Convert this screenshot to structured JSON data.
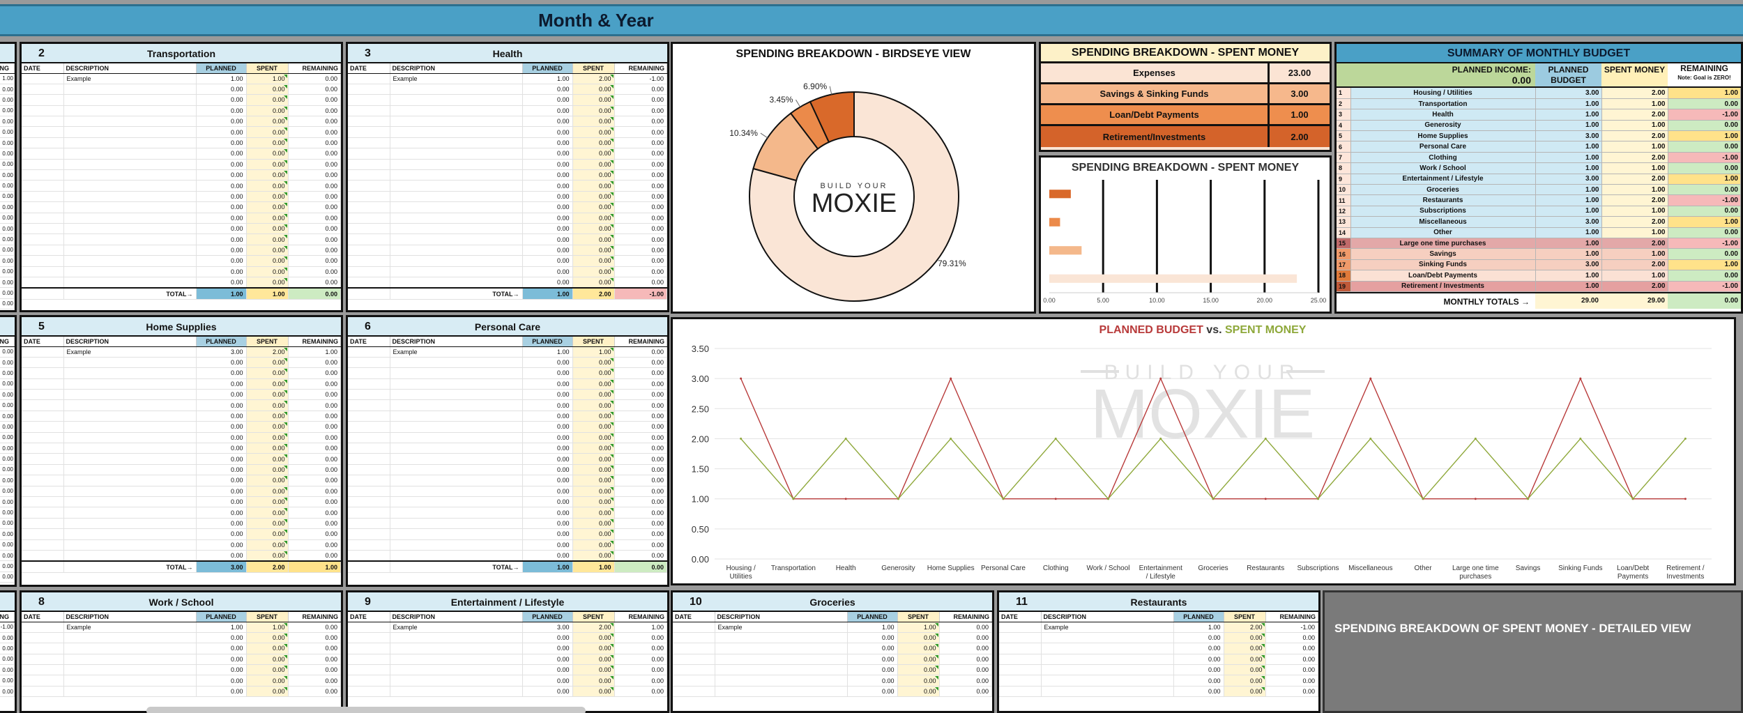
{
  "header": {
    "title": "Month & Year"
  },
  "columns": {
    "date": "DATE",
    "desc": "DESCRIPTION",
    "planned": "PLANNED",
    "spent": "SPENT",
    "remaining": "REMAINING"
  },
  "total_label": "TOTAL→",
  "left_strip": {
    "head": "ING",
    "rows": [
      [
        "1.00",
        "0.00",
        "0.00",
        "0.00",
        "0.00",
        "0.00",
        "0.00",
        "0.00",
        "0.00",
        "0.00",
        "0.00",
        "0.00",
        "0.00",
        "0.00",
        "0.00",
        "0.00",
        "0.00",
        "0.00",
        "0.00",
        "0.00",
        "0.00",
        "0.00",
        "0.00",
        "0.00",
        "0.00",
        "0.00",
        "0.00",
        "0.00",
        "0.00",
        "0.00",
        "1.00"
      ],
      [
        "0.00",
        "0.00",
        "0.00",
        "0.00",
        "0.00",
        "0.00",
        "0.00",
        "0.00",
        "0.00",
        "0.00",
        "0.00",
        "0.00",
        "0.00",
        "0.00",
        "0.00",
        "0.00",
        "0.00",
        "0.00",
        "0.00",
        "0.00",
        "0.00",
        "0.00",
        "0.00",
        "0.00",
        "0.00",
        "0.00",
        "0.00",
        "0.00",
        "0.00",
        "0.00",
        "0.00"
      ],
      [
        "-1.00",
        "0.00",
        "0.00",
        "0.00",
        "0.00",
        "0.00",
        "0.00"
      ]
    ]
  },
  "categories": [
    {
      "num": "2",
      "name": "Transportation",
      "rows": [
        [
          "Example",
          "1.00",
          "1.00",
          "0.00"
        ]
      ],
      "row_count": 20,
      "total": {
        "planned": "1.00",
        "spent": "1.00",
        "remaining": "0.00",
        "status": "zero"
      }
    },
    {
      "num": "3",
      "name": "Health",
      "rows": [
        [
          "Example",
          "1.00",
          "2.00",
          "-1.00"
        ]
      ],
      "row_count": 20,
      "total": {
        "planned": "1.00",
        "spent": "2.00",
        "remaining": "-1.00",
        "status": "neg"
      }
    },
    {
      "num": "5",
      "name": "Home Supplies",
      "rows": [
        [
          "Example",
          "3.00",
          "2.00",
          "1.00"
        ]
      ],
      "row_count": 20,
      "total": {
        "planned": "3.00",
        "spent": "2.00",
        "remaining": "1.00",
        "status": "pos"
      }
    },
    {
      "num": "6",
      "name": "Personal Care",
      "rows": [
        [
          "Example",
          "1.00",
          "1.00",
          "0.00"
        ]
      ],
      "row_count": 20,
      "total": {
        "planned": "1.00",
        "spent": "1.00",
        "remaining": "0.00",
        "status": "zero"
      }
    },
    {
      "num": "8",
      "name": "Work / School",
      "rows": [
        [
          "Example",
          "1.00",
          "1.00",
          "0.00"
        ]
      ],
      "row_count": 7
    },
    {
      "num": "9",
      "name": "Entertainment / Lifestyle",
      "rows": [
        [
          "Example",
          "3.00",
          "2.00",
          "1.00"
        ]
      ],
      "row_count": 7
    },
    {
      "num": "10",
      "name": "Groceries",
      "rows": [
        [
          "Example",
          "1.00",
          "1.00",
          "0.00"
        ]
      ],
      "row_count": 7
    },
    {
      "num": "11",
      "name": "Restaurants",
      "rows": [
        [
          "Example",
          "1.00",
          "2.00",
          "-1.00"
        ]
      ],
      "row_count": 7
    }
  ],
  "zero": "0.00",
  "birdseye": {
    "title": "SPENDING BREAKDOWN - BIRDSEYE VIEW",
    "logo_top": "BUILD YOUR",
    "logo_main": "MOXIE",
    "slices": [
      {
        "label": "Expenses",
        "value": 23.0,
        "pct": "79.31%",
        "color": "#fae5d6"
      },
      {
        "label": "Savings & Sinking Funds",
        "value": 3.0,
        "pct": "10.34%",
        "color": "#f4b88b"
      },
      {
        "label": "Loan/Debt Payments",
        "value": 1.0,
        "pct": "3.45%",
        "color": "#eb8a4a"
      },
      {
        "label": "Retirement/Investments",
        "value": 2.0,
        "pct": "6.90%",
        "color": "#d9692a"
      }
    ]
  },
  "spent_table": {
    "title": "SPENDING BREAKDOWN - SPENT MONEY",
    "rows": [
      {
        "label": "Expenses",
        "value": "23.00",
        "bg": "#fbe4d4"
      },
      {
        "label": "Savings & Sinking Funds",
        "value": "3.00",
        "bg": "#f6b88c"
      },
      {
        "label": "Loan/Debt Payments",
        "value": "1.00",
        "bg": "#ee8e4e"
      },
      {
        "label": "Retirement/Investments",
        "value": "2.00",
        "bg": "#d4632a"
      }
    ]
  },
  "chart_data": [
    {
      "type": "bar",
      "title": "SPENDING BREAKDOWN - SPENT MONEY",
      "orientation": "horizontal",
      "categories": [
        "Retirement/Investments",
        "Loan/Debt Payments",
        "Savings & Sinking Funds",
        "Expenses"
      ],
      "values": [
        2,
        1,
        3,
        23
      ],
      "colors": [
        "#d9692a",
        "#eb8a4a",
        "#f4b88b",
        "#fae5d6"
      ],
      "xlim": [
        0,
        25
      ],
      "xticks": [
        "0.00",
        "5.00",
        "10.00",
        "15.00",
        "20.00",
        "25.00"
      ]
    },
    {
      "type": "line",
      "title": "PLANNED BUDGET vs. SPENT MONEY",
      "title_parts": [
        "PLANNED BUDGET",
        " vs. ",
        "SPENT MONEY"
      ],
      "categories": [
        "Housing / Utilities",
        "Transportation",
        "Health",
        "Generosity",
        "Home Supplies",
        "Personal Care",
        "Clothing",
        "Work / School",
        "Entertainment / Lifestyle",
        "Groceries",
        "Restaurants",
        "Subscriptions",
        "Miscellaneous",
        "Other",
        "Large one time purchases",
        "Savings",
        "Sinking Funds",
        "Loan/Debt Payments",
        "Retirement / Investments"
      ],
      "series": [
        {
          "name": "PLANNED BUDGET",
          "color": "#b83a3a",
          "values": [
            3,
            1,
            1,
            1,
            3,
            1,
            1,
            1,
            3,
            1,
            1,
            1,
            3,
            1,
            1,
            1,
            3,
            1,
            1
          ]
        },
        {
          "name": "SPENT MONEY",
          "color": "#8ea83a",
          "values": [
            2,
            1,
            2,
            1,
            2,
            1,
            2,
            1,
            2,
            1,
            2,
            1,
            2,
            1,
            2,
            1,
            2,
            1,
            2
          ]
        }
      ],
      "ylim": [
        0,
        3.5
      ],
      "yticks": [
        "0.00",
        "0.50",
        "1.00",
        "1.50",
        "2.00",
        "2.50",
        "3.00",
        "3.50"
      ],
      "grid": true,
      "watermark_top": "BUILD YOUR",
      "watermark_main": "MOXIE"
    }
  ],
  "summary": {
    "title": "SUMMARY OF MONTHLY BUDGET",
    "income_label": "PLANNED INCOME:",
    "income_value": "0.00",
    "col_planned": "PLANNED BUDGET",
    "col_spent": "SPENT MONEY",
    "col_remaining": "REMAINING",
    "col_note": "Note: Goal is ZERO!",
    "rows": [
      {
        "i": "1",
        "name": "Housing / Utilities",
        "p": "3.00",
        "s": "2.00",
        "r": "1.00",
        "t": "exp",
        "st": "pos"
      },
      {
        "i": "2",
        "name": "Transportation",
        "p": "1.00",
        "s": "1.00",
        "r": "0.00",
        "t": "exp",
        "st": "zero"
      },
      {
        "i": "3",
        "name": "Health",
        "p": "1.00",
        "s": "2.00",
        "r": "-1.00",
        "t": "exp",
        "st": "neg"
      },
      {
        "i": "4",
        "name": "Generosity",
        "p": "1.00",
        "s": "1.00",
        "r": "0.00",
        "t": "exp",
        "st": "zero"
      },
      {
        "i": "5",
        "name": "Home Supplies",
        "p": "3.00",
        "s": "2.00",
        "r": "1.00",
        "t": "exp",
        "st": "pos"
      },
      {
        "i": "6",
        "name": "Personal Care",
        "p": "1.00",
        "s": "1.00",
        "r": "0.00",
        "t": "exp",
        "st": "zero"
      },
      {
        "i": "7",
        "name": "Clothing",
        "p": "1.00",
        "s": "2.00",
        "r": "-1.00",
        "t": "exp",
        "st": "neg"
      },
      {
        "i": "8",
        "name": "Work / School",
        "p": "1.00",
        "s": "1.00",
        "r": "0.00",
        "t": "exp",
        "st": "zero"
      },
      {
        "i": "9",
        "name": "Entertainment / Lifestyle",
        "p": "3.00",
        "s": "2.00",
        "r": "1.00",
        "t": "exp",
        "st": "pos"
      },
      {
        "i": "10",
        "name": "Groceries",
        "p": "1.00",
        "s": "1.00",
        "r": "0.00",
        "t": "exp",
        "st": "zero"
      },
      {
        "i": "11",
        "name": "Restaurants",
        "p": "1.00",
        "s": "2.00",
        "r": "-1.00",
        "t": "exp",
        "st": "neg"
      },
      {
        "i": "12",
        "name": "Subscriptions",
        "p": "1.00",
        "s": "1.00",
        "r": "0.00",
        "t": "exp",
        "st": "zero"
      },
      {
        "i": "13",
        "name": "Miscellaneous",
        "p": "3.00",
        "s": "2.00",
        "r": "1.00",
        "t": "exp",
        "st": "pos"
      },
      {
        "i": "14",
        "name": "Other",
        "p": "1.00",
        "s": "1.00",
        "r": "0.00",
        "t": "exp",
        "st": "zero"
      },
      {
        "i": "15",
        "name": "Large one time purchases",
        "p": "1.00",
        "s": "2.00",
        "r": "-1.00",
        "t": "big",
        "st": "neg"
      },
      {
        "i": "16",
        "name": "Savings",
        "p": "1.00",
        "s": "1.00",
        "r": "0.00",
        "t": "sav",
        "st": "zero"
      },
      {
        "i": "17",
        "name": "Sinking Funds",
        "p": "3.00",
        "s": "2.00",
        "r": "1.00",
        "t": "sav",
        "st": "pos"
      },
      {
        "i": "18",
        "name": "Loan/Debt Payments",
        "p": "1.00",
        "s": "1.00",
        "r": "0.00",
        "t": "loan",
        "st": "zero"
      },
      {
        "i": "19",
        "name": "Retirement / Investments",
        "p": "1.00",
        "s": "2.00",
        "r": "-1.00",
        "t": "ret",
        "st": "neg"
      }
    ],
    "totals_label": "MONTHLY TOTALS →",
    "totals": {
      "p": "29.00",
      "s": "29.00",
      "r": "0.00"
    }
  },
  "detailed": {
    "title": "SPENDING BREAKDOWN OF SPENT MONEY - DETAILED VIEW"
  }
}
